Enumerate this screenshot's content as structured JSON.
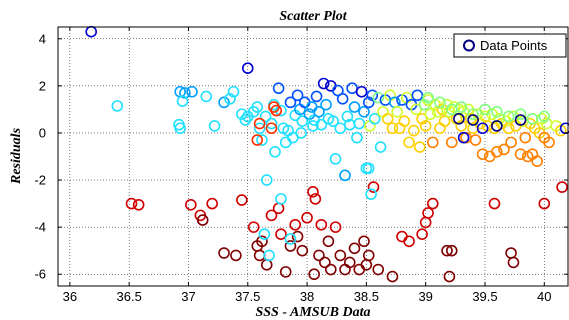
{
  "chart_data": {
    "type": "scatter",
    "title": "Scatter Plot",
    "xlabel": "SSS - AMSUB Data",
    "ylabel": "Residuals",
    "xlim": [
      35.9,
      40.2
    ],
    "ylim": [
      -6.5,
      4.5
    ],
    "xticks": [
      "36",
      "36.5",
      "37",
      "37.5",
      "38",
      "38.5",
      "39",
      "39.5",
      "40"
    ],
    "yticks": [
      "4",
      "2",
      "0",
      "-2",
      "-4",
      "-6"
    ],
    "grid": true,
    "legend": {
      "position": "top-right",
      "entries": [
        "Data Points"
      ]
    },
    "marker_edge_colors": [
      "#000080",
      "#0000d0",
      "#0050ff",
      "#00a0ff",
      "#20e0ff",
      "#40ffd0",
      "#80ff80",
      "#d0ff30",
      "#ffd000",
      "#ff8000",
      "#ff3000",
      "#d00000",
      "#800000"
    ],
    "series": [
      {
        "name": "Data Points",
        "points": [
          [
            36.18,
            4.3,
            0.06
          ],
          [
            36.4,
            1.15,
            0.3
          ],
          [
            36.93,
            1.75,
            0.26
          ],
          [
            36.97,
            1.7,
            0.28
          ],
          [
            36.95,
            1.35,
            0.3
          ],
          [
            36.92,
            0.35,
            0.3
          ],
          [
            36.93,
            0.2,
            0.32
          ],
          [
            37.03,
            1.75,
            0.26
          ],
          [
            37.15,
            1.55,
            0.3
          ],
          [
            37.22,
            0.3,
            0.33
          ],
          [
            37.3,
            1.3,
            0.28
          ],
          [
            37.35,
            1.45,
            0.3
          ],
          [
            37.38,
            1.75,
            0.3
          ],
          [
            37.5,
            2.75,
            0.05
          ],
          [
            37.45,
            0.8,
            0.3
          ],
          [
            37.5,
            0.7,
            0.32
          ],
          [
            37.48,
            0.55,
            0.34
          ],
          [
            37.55,
            0.9,
            0.3
          ],
          [
            37.58,
            1.1,
            0.33
          ],
          [
            37.6,
            0.2,
            0.34
          ],
          [
            37.62,
            -0.3,
            0.36
          ],
          [
            37.65,
            0.7,
            0.32
          ],
          [
            37.66,
            -2.0,
            0.34
          ],
          [
            37.7,
            0.4,
            0.32
          ],
          [
            37.72,
            1.2,
            0.3
          ],
          [
            37.73,
            -0.8,
            0.34
          ],
          [
            37.76,
            1.9,
            0.14
          ],
          [
            37.78,
            0.95,
            0.3
          ],
          [
            37.8,
            0.2,
            0.3
          ],
          [
            37.82,
            -0.4,
            0.33
          ],
          [
            37.84,
            0.1,
            0.36
          ],
          [
            37.86,
            1.3,
            0.2
          ],
          [
            37.88,
            -0.2,
            0.34
          ],
          [
            37.9,
            0.75,
            0.3
          ],
          [
            37.92,
            1.6,
            0.16
          ],
          [
            37.94,
            1.0,
            0.24
          ],
          [
            37.95,
            0.0,
            0.34
          ],
          [
            37.96,
            0.5,
            0.3
          ],
          [
            37.98,
            1.3,
            0.2
          ],
          [
            38.02,
            0.8,
            0.28
          ],
          [
            38.04,
            1.1,
            0.22
          ],
          [
            38.05,
            0.3,
            0.3
          ],
          [
            38.06,
            0.55,
            0.32
          ],
          [
            38.08,
            1.55,
            0.2
          ],
          [
            38.1,
            0.9,
            0.28
          ],
          [
            38.12,
            0.35,
            0.3
          ],
          [
            38.14,
            2.1,
            0.12
          ],
          [
            38.16,
            1.2,
            0.24
          ],
          [
            38.18,
            0.6,
            0.3
          ],
          [
            38.2,
            2.0,
            0.1
          ],
          [
            38.22,
            0.5,
            0.3
          ],
          [
            38.24,
            -1.1,
            0.3
          ],
          [
            38.26,
            1.8,
            0.16
          ],
          [
            38.28,
            0.2,
            0.32
          ],
          [
            38.3,
            1.45,
            0.2
          ],
          [
            38.32,
            -1.8,
            0.28
          ],
          [
            38.34,
            0.7,
            0.3
          ],
          [
            38.36,
            0.35,
            0.3
          ],
          [
            38.38,
            1.9,
            0.14
          ],
          [
            38.4,
            1.1,
            0.24
          ],
          [
            38.42,
            -0.2,
            0.36
          ],
          [
            38.44,
            0.4,
            0.34
          ],
          [
            38.46,
            1.75,
            0.12
          ],
          [
            38.48,
            0.9,
            0.28
          ],
          [
            38.5,
            -1.5,
            0.34
          ],
          [
            38.52,
            1.3,
            0.2
          ],
          [
            38.53,
            0.3,
            0.6
          ],
          [
            38.55,
            1.6,
            0.16
          ],
          [
            38.57,
            0.6,
            0.3
          ],
          [
            38.6,
            1.5,
            0.46
          ],
          [
            38.62,
            -0.6,
            0.36
          ],
          [
            38.64,
            0.9,
            0.6
          ],
          [
            38.66,
            1.4,
            0.2
          ],
          [
            38.68,
            0.6,
            0.7
          ],
          [
            38.7,
            1.6,
            0.56
          ],
          [
            38.72,
            0.2,
            0.68
          ],
          [
            38.74,
            1.3,
            0.24
          ],
          [
            38.76,
            0.9,
            0.62
          ],
          [
            38.78,
            0.2,
            0.7
          ],
          [
            38.8,
            1.4,
            0.2
          ],
          [
            38.82,
            0.5,
            0.7
          ],
          [
            38.84,
            1.5,
            0.56
          ],
          [
            38.86,
            -0.4,
            0.68
          ],
          [
            38.88,
            1.2,
            0.2
          ],
          [
            38.9,
            0.1,
            0.7
          ],
          [
            38.92,
            1.0,
            0.62
          ],
          [
            38.93,
            1.6,
            0.14
          ],
          [
            38.95,
            -0.6,
            0.7
          ],
          [
            38.97,
            0.6,
            0.7
          ],
          [
            38.99,
            1.2,
            0.46
          ],
          [
            39.0,
            0.3,
            0.68
          ],
          [
            39.02,
            1.4,
            0.58
          ],
          [
            39.04,
            0.8,
            0.6
          ],
          [
            39.06,
            -0.4,
            0.72
          ],
          [
            39.08,
            1.2,
            0.56
          ],
          [
            39.1,
            0.9,
            0.62
          ],
          [
            39.12,
            0.2,
            0.7
          ],
          [
            39.14,
            1.0,
            0.64
          ],
          [
            39.16,
            0.5,
            0.7
          ],
          [
            39.18,
            1.2,
            0.56
          ],
          [
            39.2,
            0.9,
            0.6
          ],
          [
            39.22,
            -0.4,
            0.74
          ],
          [
            39.24,
            1.1,
            0.6
          ],
          [
            39.26,
            0.6,
            0.66
          ],
          [
            39.28,
            1.0,
            0.56
          ],
          [
            39.3,
            0.3,
            0.7
          ],
          [
            39.32,
            0.9,
            0.6
          ],
          [
            39.34,
            -0.2,
            0.74
          ],
          [
            39.36,
            1.0,
            0.56
          ],
          [
            39.38,
            0.6,
            0.64
          ],
          [
            39.4,
            0.2,
            0.7
          ],
          [
            39.42,
            -0.3,
            0.76
          ],
          [
            39.44,
            0.8,
            0.6
          ],
          [
            39.46,
            0.4,
            0.7
          ],
          [
            39.48,
            -0.9,
            0.74
          ],
          [
            39.5,
            0.7,
            0.62
          ],
          [
            39.52,
            0.3,
            0.68
          ],
          [
            39.54,
            -1.0,
            0.74
          ],
          [
            39.56,
            0.8,
            0.62
          ],
          [
            39.58,
            0.2,
            0.7
          ],
          [
            39.6,
            -0.8,
            0.76
          ],
          [
            39.62,
            0.6,
            0.62
          ],
          [
            39.64,
            0.4,
            0.7
          ],
          [
            39.66,
            -0.7,
            0.76
          ],
          [
            39.68,
            0.5,
            0.62
          ],
          [
            39.7,
            0.2,
            0.7
          ],
          [
            39.72,
            -0.4,
            0.74
          ],
          [
            39.74,
            0.7,
            0.6
          ],
          [
            39.76,
            0.3,
            0.68
          ],
          [
            39.8,
            -0.9,
            0.76
          ],
          [
            39.82,
            0.5,
            0.62
          ],
          [
            39.84,
            -0.2,
            0.72
          ],
          [
            39.86,
            -1.0,
            0.76
          ],
          [
            39.88,
            0.4,
            0.64
          ],
          [
            39.9,
            -0.9,
            0.74
          ],
          [
            39.92,
            0.2,
            0.66
          ],
          [
            39.94,
            -1.2,
            0.76
          ],
          [
            39.96,
            0.0,
            0.7
          ],
          [
            39.98,
            0.6,
            0.58
          ],
          [
            40.0,
            -0.2,
            0.72
          ],
          [
            40.02,
            0.4,
            0.56
          ],
          [
            40.04,
            -0.4,
            0.72
          ],
          [
            40.1,
            0.3,
            0.6
          ],
          [
            40.14,
            0.1,
            0.7
          ],
          [
            39.22,
            1.0,
            0.5
          ],
          [
            39.3,
            1.1,
            0.52
          ],
          [
            39.4,
            0.8,
            0.54
          ],
          [
            39.5,
            1.0,
            0.5
          ],
          [
            39.6,
            0.9,
            0.52
          ],
          [
            39.7,
            0.7,
            0.54
          ],
          [
            39.8,
            0.8,
            0.52
          ],
          [
            39.9,
            0.6,
            0.5
          ],
          [
            40.0,
            0.7,
            0.5
          ],
          [
            39.12,
            1.3,
            0.46
          ],
          [
            39.02,
            1.5,
            0.46
          ],
          [
            39.28,
            0.6,
            0.04
          ],
          [
            39.4,
            0.55,
            0.04
          ],
          [
            39.6,
            0.3,
            0.04
          ],
          [
            39.8,
            0.55,
            0.04
          ],
          [
            39.32,
            -0.2,
            0.06
          ],
          [
            39.48,
            0.2,
            0.08
          ],
          [
            40.18,
            0.2,
            0.1
          ],
          [
            37.72,
            1.1,
            0.82
          ],
          [
            37.7,
            0.2,
            0.82
          ],
          [
            37.74,
            0.95,
            0.84
          ],
          [
            37.6,
            0.4,
            0.84
          ],
          [
            37.58,
            -0.3,
            0.86
          ],
          [
            36.52,
            -3.0,
            0.9
          ],
          [
            36.58,
            -3.05,
            0.92
          ],
          [
            37.02,
            -3.05,
            0.92
          ],
          [
            37.1,
            -3.5,
            0.94
          ],
          [
            37.12,
            -3.7,
            0.96
          ],
          [
            37.2,
            -3.0,
            0.92
          ],
          [
            37.3,
            -5.1,
            0.98
          ],
          [
            37.4,
            -5.2,
            0.98
          ],
          [
            37.45,
            -2.85,
            0.9
          ],
          [
            37.55,
            -4.0,
            0.94
          ],
          [
            37.58,
            -4.8,
            0.96
          ],
          [
            37.6,
            -5.2,
            0.98
          ],
          [
            37.62,
            -4.6,
            0.96
          ],
          [
            37.66,
            -5.6,
            0.98
          ],
          [
            37.7,
            -3.5,
            0.94
          ],
          [
            37.76,
            -3.2,
            0.92
          ],
          [
            37.78,
            -4.3,
            0.94
          ],
          [
            37.82,
            -5.9,
            0.98
          ],
          [
            37.86,
            -4.8,
            0.96
          ],
          [
            37.9,
            -3.9,
            0.94
          ],
          [
            37.92,
            -4.4,
            0.96
          ],
          [
            37.96,
            -5.0,
            0.98
          ],
          [
            38.0,
            -3.6,
            0.94
          ],
          [
            38.05,
            -2.5,
            0.92
          ],
          [
            38.07,
            -2.8,
            0.92
          ],
          [
            38.06,
            -6.0,
            0.98
          ],
          [
            38.1,
            -5.2,
            0.98
          ],
          [
            38.12,
            -3.9,
            0.94
          ],
          [
            38.15,
            -5.5,
            0.98
          ],
          [
            38.18,
            -4.6,
            0.96
          ],
          [
            38.2,
            -5.8,
            0.98
          ],
          [
            38.24,
            -4.0,
            0.94
          ],
          [
            38.28,
            -5.2,
            0.98
          ],
          [
            38.32,
            -5.8,
            0.98
          ],
          [
            38.36,
            -5.5,
            0.98
          ],
          [
            38.4,
            -4.9,
            0.96
          ],
          [
            38.44,
            -5.8,
            0.98
          ],
          [
            38.48,
            -4.6,
            0.96
          ],
          [
            38.5,
            -5.6,
            0.98
          ],
          [
            38.52,
            -5.2,
            0.98
          ],
          [
            38.56,
            -2.3,
            0.9
          ],
          [
            38.6,
            -5.8,
            0.98
          ],
          [
            38.8,
            -4.4,
            0.94
          ],
          [
            38.86,
            -4.6,
            0.94
          ],
          [
            38.72,
            -6.1,
            0.98
          ],
          [
            38.97,
            -4.3,
            0.94
          ],
          [
            39.0,
            -3.8,
            0.92
          ],
          [
            39.02,
            -3.4,
            0.92
          ],
          [
            39.06,
            -3.0,
            0.9
          ],
          [
            39.18,
            -5.0,
            0.96
          ],
          [
            39.2,
            -6.1,
            0.98
          ],
          [
            39.22,
            -5.0,
            0.96
          ],
          [
            39.58,
            -3.0,
            0.9
          ],
          [
            39.72,
            -5.1,
            0.96
          ],
          [
            39.74,
            -5.5,
            0.98
          ],
          [
            40.0,
            -3.0,
            0.9
          ],
          [
            40.15,
            -2.3,
            0.88
          ],
          [
            38.52,
            -1.5,
            0.32
          ],
          [
            38.54,
            -2.6,
            0.3
          ],
          [
            37.78,
            -2.8,
            0.34
          ],
          [
            37.86,
            -4.5,
            0.32
          ],
          [
            37.68,
            -5.2,
            0.34
          ],
          [
            37.64,
            -4.3,
            0.32
          ]
        ]
      }
    ]
  }
}
